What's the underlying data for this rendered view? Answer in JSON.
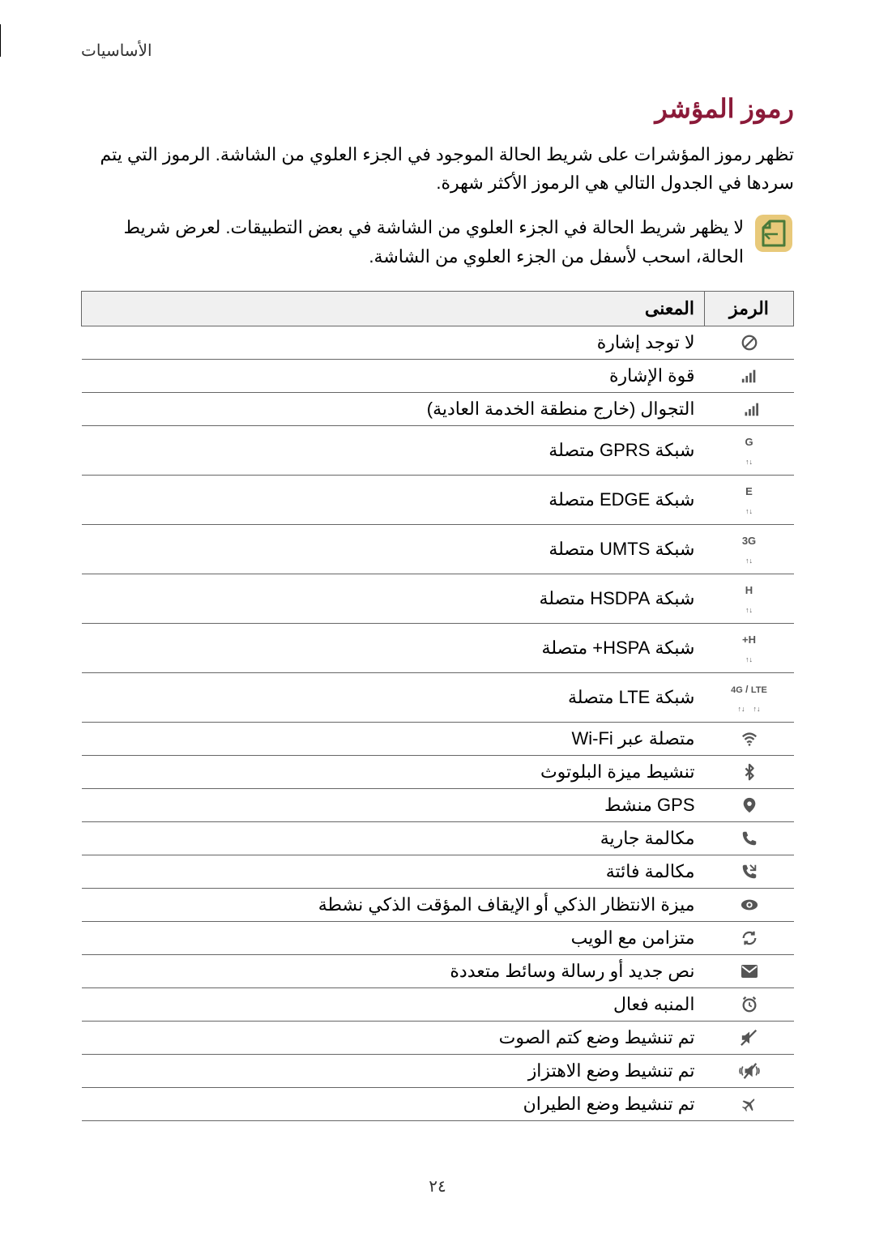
{
  "header": {
    "breadcrumb": "الأساسيات"
  },
  "title": "رموز المؤشر",
  "intro": "تظهر رموز المؤشرات على شريط الحالة الموجود في الجزء العلوي من الشاشة. الرموز التي يتم سردها في الجدول التالي هي الرموز الأكثر شهرة.",
  "note": "لا يظهر شريط الحالة في الجزء العلوي من الشاشة في بعض التطبيقات. لعرض شريط الحالة، اسحب لأسفل من الجزء العلوي من الشاشة.",
  "table": {
    "headers": {
      "icon": "الرمز",
      "meaning": "المعنى"
    },
    "rows": [
      {
        "icon": "no-signal",
        "meaning": "لا توجد إشارة"
      },
      {
        "icon": "signal",
        "meaning": "قوة الإشارة"
      },
      {
        "icon": "roaming",
        "meaning": "التجوال (خارج منطقة الخدمة العادية)"
      },
      {
        "icon": "gprs",
        "meaning": "شبكة GPRS متصلة"
      },
      {
        "icon": "edge",
        "meaning": "شبكة EDGE متصلة"
      },
      {
        "icon": "umts",
        "meaning": "شبكة UMTS متصلة"
      },
      {
        "icon": "hsdpa",
        "meaning": "شبكة HSDPA متصلة"
      },
      {
        "icon": "hspa",
        "meaning": "شبكة HSPA+ متصلة"
      },
      {
        "icon": "lte",
        "meaning": "شبكة LTE متصلة"
      },
      {
        "icon": "wifi",
        "meaning": "متصلة عبر Wi-Fi"
      },
      {
        "icon": "bluetooth",
        "meaning": "تنشيط ميزة البلوتوث"
      },
      {
        "icon": "gps",
        "meaning": "GPS منشط"
      },
      {
        "icon": "call",
        "meaning": "مكالمة جارية"
      },
      {
        "icon": "missed-call",
        "meaning": "مكالمة فائتة"
      },
      {
        "icon": "smart-stay",
        "meaning": "ميزة الانتظار الذكي أو الإيقاف المؤقت الذكي نشطة"
      },
      {
        "icon": "sync",
        "meaning": "متزامن مع الويب"
      },
      {
        "icon": "message",
        "meaning": "نص جديد أو رسالة وسائط متعددة"
      },
      {
        "icon": "alarm",
        "meaning": "المنبه فعال"
      },
      {
        "icon": "mute",
        "meaning": "تم تنشيط وضع كتم الصوت"
      },
      {
        "icon": "vibrate",
        "meaning": "تم تنشيط وضع الاهتزاز"
      },
      {
        "icon": "airplane",
        "meaning": "تم تنشيط وضع الطيران"
      }
    ]
  },
  "pageNumber": "٢٤",
  "colors": {
    "titleColor": "#8b1a39",
    "headerBg": "#f0f0f0",
    "borderColor": "#666666",
    "iconColor": "#555555",
    "noteIconBg": "#e8c97a",
    "noteIconStroke": "#4a7a3a"
  }
}
